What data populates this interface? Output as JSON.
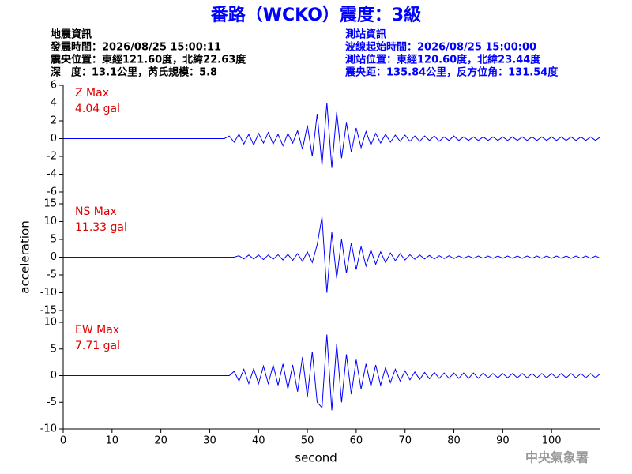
{
  "header": {
    "title": "番路（WCKO）震度：3級",
    "left": [
      "地震資訊",
      "發震時間：2026/08/25 15:00:11",
      "震央位置：東經121.60度，北緯22.63度",
      "深　度：13.1公里，芮氏規模：5.8"
    ],
    "right": [
      "測站資訊",
      "波線起始時間：2026/08/25 15:00:00",
      "測站位置：東經120.60度，北緯23.44度",
      "震央距：135.84公里，反方位角：131.54度"
    ]
  },
  "footer": "中央氣象署",
  "chart_data": [
    {
      "type": "line",
      "label": "Z Max",
      "max_text": "4.04 gal",
      "ylim": [
        -6,
        6
      ],
      "yticks": [
        -6,
        -4,
        -2,
        0,
        2,
        4,
        6
      ],
      "xlim": [
        0,
        110
      ],
      "x": [
        0,
        1,
        2,
        3,
        4,
        5,
        6,
        7,
        8,
        9,
        10,
        11,
        12,
        13,
        14,
        15,
        16,
        17,
        18,
        19,
        20,
        21,
        22,
        23,
        24,
        25,
        26,
        27,
        28,
        29,
        30,
        31,
        32,
        33,
        34,
        35,
        36,
        37,
        38,
        39,
        40,
        41,
        42,
        43,
        44,
        45,
        46,
        47,
        48,
        49,
        50,
        51,
        52,
        53,
        54,
        55,
        56,
        57,
        58,
        59,
        60,
        61,
        62,
        63,
        64,
        65,
        66,
        67,
        68,
        69,
        70,
        71,
        72,
        73,
        74,
        75,
        76,
        77,
        78,
        79,
        80,
        81,
        82,
        83,
        84,
        85,
        86,
        87,
        88,
        89,
        90,
        91,
        92,
        93,
        94,
        95,
        96,
        97,
        98,
        99,
        100,
        101,
        102,
        103,
        104,
        105,
        106,
        107,
        108,
        109,
        110
      ],
      "series": [
        {
          "color": "#0000ff",
          "values": [
            0,
            0,
            0,
            0,
            0,
            0,
            0,
            0,
            0,
            0,
            0,
            0,
            0,
            0,
            0,
            0,
            0,
            0,
            0,
            0,
            0,
            0,
            0,
            0,
            0,
            0,
            0,
            0,
            0,
            0,
            0,
            0,
            0,
            0,
            0.3,
            -0.4,
            0.5,
            -0.6,
            0.5,
            -0.7,
            0.6,
            -0.5,
            0.7,
            -0.6,
            0.5,
            -0.8,
            0.6,
            -0.5,
            0.9,
            -1.2,
            1.5,
            -2.0,
            2.8,
            -3.0,
            4.04,
            -3.3,
            3.0,
            -2.2,
            1.8,
            -1.5,
            1.2,
            -1.0,
            0.8,
            -0.7,
            0.6,
            -0.5,
            0.5,
            -0.4,
            0.4,
            -0.3,
            0.4,
            -0.3,
            0.3,
            -0.3,
            0.3,
            -0.2,
            0.3,
            -0.3,
            0.2,
            -0.2,
            0.3,
            -0.2,
            0.2,
            -0.2,
            0.2,
            -0.2,
            0.2,
            -0.2,
            0.2,
            -0.2,
            0.2,
            -0.2,
            0.2,
            -0.2,
            0.2,
            -0.2,
            0.2,
            -0.2,
            0.2,
            -0.2,
            0.2,
            -0.2,
            0.2,
            -0.2,
            0.2,
            -0.2,
            0.2,
            -0.2,
            0.2,
            -0.2,
            0.2
          ]
        }
      ]
    },
    {
      "type": "line",
      "label": "NS Max",
      "max_text": "11.33 gal",
      "ylabel": "acceleration",
      "ylim": [
        -15,
        15
      ],
      "yticks": [
        -15,
        -10,
        -5,
        0,
        5,
        10,
        15
      ],
      "xlim": [
        0,
        110
      ],
      "x": [
        0,
        1,
        2,
        3,
        4,
        5,
        6,
        7,
        8,
        9,
        10,
        11,
        12,
        13,
        14,
        15,
        16,
        17,
        18,
        19,
        20,
        21,
        22,
        23,
        24,
        25,
        26,
        27,
        28,
        29,
        30,
        31,
        32,
        33,
        34,
        35,
        36,
        37,
        38,
        39,
        40,
        41,
        42,
        43,
        44,
        45,
        46,
        47,
        48,
        49,
        50,
        51,
        52,
        53,
        54,
        55,
        56,
        57,
        58,
        59,
        60,
        61,
        62,
        63,
        64,
        65,
        66,
        67,
        68,
        69,
        70,
        71,
        72,
        73,
        74,
        75,
        76,
        77,
        78,
        79,
        80,
        81,
        82,
        83,
        84,
        85,
        86,
        87,
        88,
        89,
        90,
        91,
        92,
        93,
        94,
        95,
        96,
        97,
        98,
        99,
        100,
        101,
        102,
        103,
        104,
        105,
        106,
        107,
        108,
        109,
        110
      ],
      "series": [
        {
          "color": "#0000ff",
          "values": [
            0,
            0,
            0,
            0,
            0,
            0,
            0,
            0,
            0,
            0,
            0,
            0,
            0,
            0,
            0,
            0,
            0,
            0,
            0,
            0,
            0,
            0,
            0,
            0,
            0,
            0,
            0,
            0,
            0,
            0,
            0,
            0,
            0,
            0,
            0,
            0,
            0.4,
            -0.5,
            0.6,
            -0.5,
            0.6,
            -0.7,
            0.6,
            -0.6,
            0.7,
            -0.8,
            0.8,
            -0.9,
            1.0,
            -1.2,
            1.5,
            -1.5,
            3.5,
            11.33,
            -10.0,
            7.0,
            -6.0,
            5.0,
            -4.5,
            4.0,
            -3.5,
            3.0,
            -2.5,
            2.0,
            -2.0,
            1.5,
            -1.5,
            1.2,
            -1.0,
            1.0,
            -0.8,
            0.7,
            -0.6,
            0.6,
            -0.5,
            0.5,
            -0.5,
            0.4,
            -0.4,
            0.4,
            -0.4,
            0.3,
            -0.3,
            0.3,
            -0.3,
            0.3,
            -0.3,
            0.3,
            -0.3,
            0.3,
            -0.3,
            0.3,
            -0.3,
            0.3,
            -0.3,
            0.3,
            -0.3,
            0.3,
            -0.3,
            0.3,
            -0.3,
            0.3,
            -0.3,
            0.3,
            -0.3,
            0.3,
            -0.3,
            0.3,
            -0.3,
            0.3,
            -0.3
          ]
        }
      ]
    },
    {
      "type": "line",
      "label": "EW Max",
      "max_text": "7.71 gal",
      "xlabel": "second",
      "ylim": [
        -10,
        10
      ],
      "yticks": [
        -10,
        -5,
        0,
        5,
        10
      ],
      "xlim": [
        0,
        110
      ],
      "xticks": [
        0,
        10,
        20,
        30,
        40,
        50,
        60,
        70,
        80,
        90,
        100
      ],
      "x": [
        0,
        1,
        2,
        3,
        4,
        5,
        6,
        7,
        8,
        9,
        10,
        11,
        12,
        13,
        14,
        15,
        16,
        17,
        18,
        19,
        20,
        21,
        22,
        23,
        24,
        25,
        26,
        27,
        28,
        29,
        30,
        31,
        32,
        33,
        34,
        35,
        36,
        37,
        38,
        39,
        40,
        41,
        42,
        43,
        44,
        45,
        46,
        47,
        48,
        49,
        50,
        51,
        52,
        53,
        54,
        55,
        56,
        57,
        58,
        59,
        60,
        61,
        62,
        63,
        64,
        65,
        66,
        67,
        68,
        69,
        70,
        71,
        72,
        73,
        74,
        75,
        76,
        77,
        78,
        79,
        80,
        81,
        82,
        83,
        84,
        85,
        86,
        87,
        88,
        89,
        90,
        91,
        92,
        93,
        94,
        95,
        96,
        97,
        98,
        99,
        100,
        101,
        102,
        103,
        104,
        105,
        106,
        107,
        108,
        109,
        110
      ],
      "series": [
        {
          "color": "#0000ff",
          "values": [
            0,
            0,
            0,
            0,
            0,
            0,
            0,
            0,
            0,
            0,
            0,
            0,
            0,
            0,
            0,
            0,
            0,
            0,
            0,
            0,
            0,
            0,
            0,
            0,
            0,
            0,
            0,
            0,
            0,
            0,
            0,
            0,
            0,
            0,
            0,
            0.8,
            -1.0,
            1.2,
            -1.5,
            1.3,
            -1.5,
            1.8,
            -1.5,
            2.0,
            -1.8,
            2.2,
            -2.5,
            2.0,
            -3.0,
            3.5,
            -4.0,
            4.5,
            -5.0,
            -6.0,
            7.71,
            -6.5,
            6.0,
            -5.0,
            4.0,
            -3.5,
            3.0,
            -2.5,
            2.2,
            -2.0,
            2.0,
            -1.8,
            1.5,
            -1.3,
            1.2,
            -1.0,
            0.9,
            -0.8,
            0.7,
            -0.7,
            0.6,
            -0.6,
            0.6,
            -0.5,
            0.5,
            -0.5,
            0.5,
            -0.5,
            0.5,
            -0.5,
            0.5,
            -0.5,
            0.5,
            -0.4,
            0.4,
            -0.4,
            0.4,
            -0.4,
            0.4,
            -0.4,
            0.4,
            -0.4,
            0.4,
            -0.4,
            0.4,
            -0.4,
            0.4,
            -0.4,
            0.4,
            -0.4,
            0.4,
            -0.4,
            0.4,
            -0.4,
            0.4,
            -0.4,
            0.4
          ]
        }
      ]
    }
  ]
}
